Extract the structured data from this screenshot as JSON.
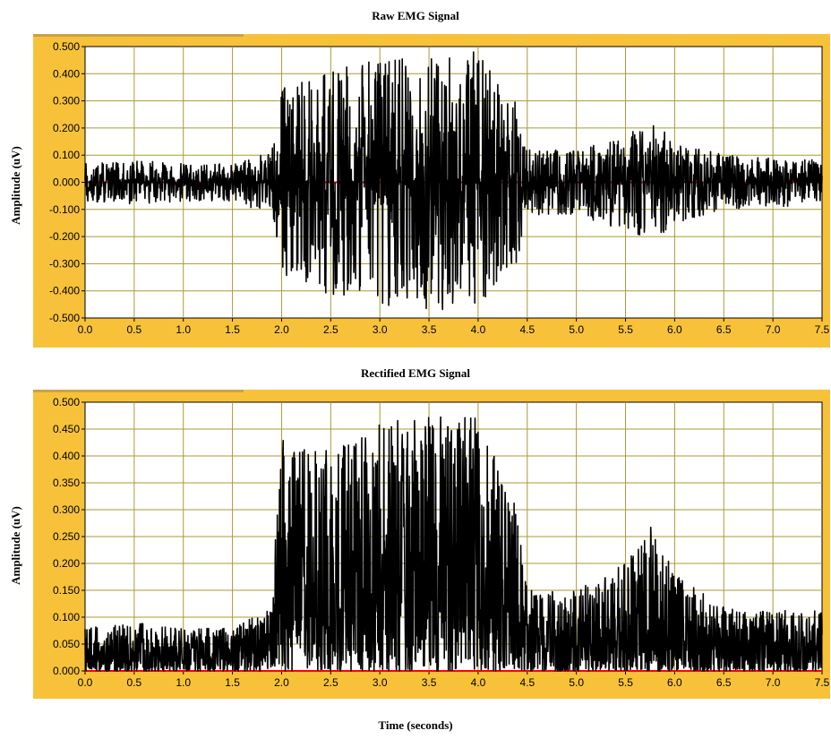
{
  "colors": {
    "frame": "#f7c23a",
    "frame_tab": "#c9a24a",
    "plot_bg": "#ffffff",
    "grid": "#a59b36",
    "trace": "#000000",
    "baseline": "#ff0000"
  },
  "xlabel": "Time (seconds)",
  "chart_data": [
    {
      "type": "line",
      "title": "Raw EMG Signal",
      "ylabel": "Amplitude (uV)",
      "xlabel": "",
      "xlim": [
        0.0,
        7.5
      ],
      "ylim": [
        -0.5,
        0.5
      ],
      "x_ticks": [
        "0.0",
        "0.5",
        "1.0",
        "1.5",
        "2.0",
        "2.5",
        "3.0",
        "3.5",
        "4.0",
        "4.5",
        "5.0",
        "5.5",
        "6.0",
        "6.5",
        "7.0",
        "7.5"
      ],
      "y_ticks": [
        "0.500",
        "0.400",
        "0.300",
        "0.200",
        "0.100",
        "0.000",
        "-0.100",
        "-0.200",
        "-0.300",
        "-0.400",
        "-0.500"
      ],
      "grid": true,
      "envelope": {
        "x": [
          0.0,
          0.5,
          1.0,
          1.5,
          1.9,
          2.0,
          2.3,
          2.5,
          3.0,
          3.5,
          4.0,
          4.4,
          4.5,
          5.0,
          5.5,
          5.8,
          6.0,
          6.5,
          7.0,
          7.5
        ],
        "amplitude": [
          0.07,
          0.08,
          0.07,
          0.07,
          0.12,
          0.35,
          0.38,
          0.42,
          0.45,
          0.48,
          0.48,
          0.3,
          0.12,
          0.12,
          0.18,
          0.22,
          0.15,
          0.1,
          0.09,
          0.09
        ]
      },
      "series": [
        {
          "name": "",
          "style": "trace"
        },
        {
          "name": "",
          "style": "baseline",
          "y": 0.0
        }
      ]
    },
    {
      "type": "line",
      "title": "Rectified EMG Signal",
      "ylabel": "Amplitude (uV)",
      "xlabel": "Time (seconds)",
      "xlim": [
        0.0,
        7.5
      ],
      "ylim": [
        0.0,
        0.5
      ],
      "x_ticks": [
        "0.0",
        "0.5",
        "1.0",
        "1.5",
        "2.0",
        "2.5",
        "3.0",
        "3.5",
        "4.0",
        "4.5",
        "5.0",
        "5.5",
        "6.0",
        "6.5",
        "7.0",
        "7.5"
      ],
      "y_ticks": [
        "0.500",
        "0.450",
        "0.400",
        "0.350",
        "0.300",
        "0.250",
        "0.200",
        "0.150",
        "0.100",
        "0.050",
        "0.000"
      ],
      "grid": true,
      "envelope": {
        "x": [
          0.0,
          0.5,
          1.0,
          1.5,
          1.9,
          2.0,
          2.3,
          2.5,
          3.0,
          3.5,
          4.0,
          4.4,
          4.5,
          5.0,
          5.5,
          5.8,
          6.0,
          6.5,
          7.0,
          7.5
        ],
        "amplitude": [
          0.08,
          0.09,
          0.08,
          0.08,
          0.12,
          0.46,
          0.4,
          0.44,
          0.46,
          0.48,
          0.48,
          0.3,
          0.15,
          0.15,
          0.2,
          0.28,
          0.18,
          0.12,
          0.11,
          0.12
        ]
      },
      "series": [
        {
          "name": "",
          "style": "trace"
        },
        {
          "name": "",
          "style": "baseline",
          "y": 0.0
        }
      ]
    }
  ]
}
